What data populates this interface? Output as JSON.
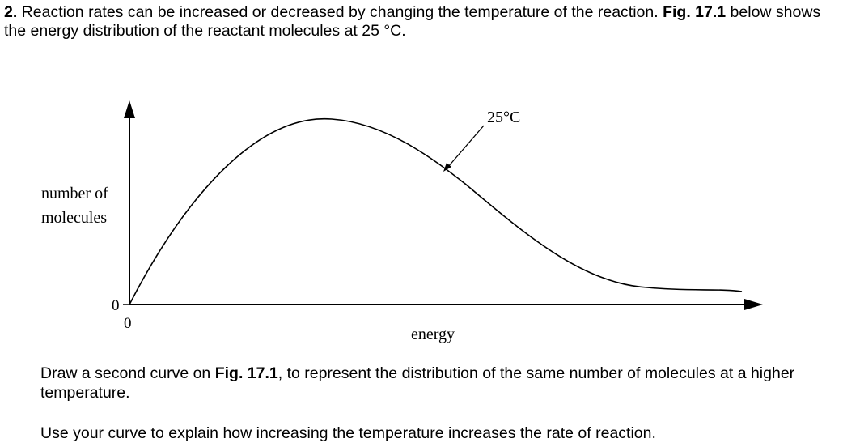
{
  "question": {
    "number": "2.",
    "intro_a": " Reaction rates can be increased or decreased by changing the temperature of the reaction. ",
    "intro_fig": "Fig. 17.1",
    "intro_b": " below shows the energy distribution of the reactant molecules at 25 °C.",
    "task_a": "Draw a second curve on ",
    "task_fig": "Fig. 17.1",
    "task_b": ", to represent the distribution of the same number of molecules at a higher temperature.",
    "task2": "Use your curve to explain how increasing the temperature increases the rate of reaction."
  },
  "figure": {
    "curve_label": "25°C",
    "ylabel_line1": "number of",
    "ylabel_line2": "molecules",
    "y_origin": "0",
    "x_origin": "0",
    "xlabel": "energy"
  }
}
